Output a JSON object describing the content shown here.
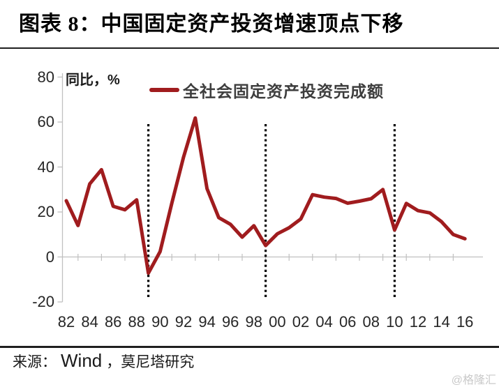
{
  "title": "图表 8：中国固定资产投资增速顶点下移",
  "unit_label": "同比，%",
  "legend": {
    "label": "全社会固定资产投资完成额"
  },
  "source": {
    "prefix": "来源：",
    "vendor": "Wind",
    "suffix": "，莫尼塔研究"
  },
  "watermark": "@格隆汇",
  "colors": {
    "series": "#A01C1E",
    "axis": "#C0C0C0",
    "trough_line": "#000000",
    "text": "#262626"
  },
  "chart_data": {
    "type": "line",
    "title": "中国固定资产投资增速顶点下移",
    "xlabel": "",
    "ylabel": "同比，%",
    "ylim": [
      -20,
      80
    ],
    "grid": false,
    "legend_position": "top-center",
    "x": [
      1982,
      1983,
      1984,
      1985,
      1986,
      1987,
      1988,
      1989,
      1990,
      1991,
      1992,
      1993,
      1994,
      1995,
      1996,
      1997,
      1998,
      1999,
      2000,
      2001,
      2002,
      2003,
      2004,
      2005,
      2006,
      2007,
      2008,
      2009,
      2010,
      2011,
      2012,
      2013,
      2014,
      2015,
      2016
    ],
    "series": [
      {
        "name": "全社会固定资产投资完成额",
        "values": [
          25.0,
          14.0,
          32.5,
          38.8,
          22.5,
          21.0,
          25.4,
          -7.2,
          2.4,
          23.9,
          44.4,
          61.8,
          30.4,
          17.5,
          14.5,
          8.8,
          13.9,
          5.1,
          10.3,
          13.0,
          16.9,
          27.7,
          26.6,
          26.0,
          23.9,
          24.8,
          25.9,
          30.0,
          12.0,
          23.8,
          20.6,
          19.6,
          15.7,
          10.0,
          8.1
        ]
      }
    ],
    "ytick_values": [
      80,
      60,
      40,
      20,
      0,
      -20
    ],
    "ytick_labels": [
      "80",
      "60",
      "40",
      "20",
      "0",
      "-20"
    ],
    "xtick_labels": [
      "82",
      "84",
      "86",
      "88",
      "90",
      "92",
      "94",
      "96",
      "98",
      "00",
      "02",
      "04",
      "06",
      "08",
      "10",
      "12",
      "14",
      "16"
    ],
    "annotations": {
      "trough_years": [
        1989,
        1999,
        2010
      ]
    }
  }
}
